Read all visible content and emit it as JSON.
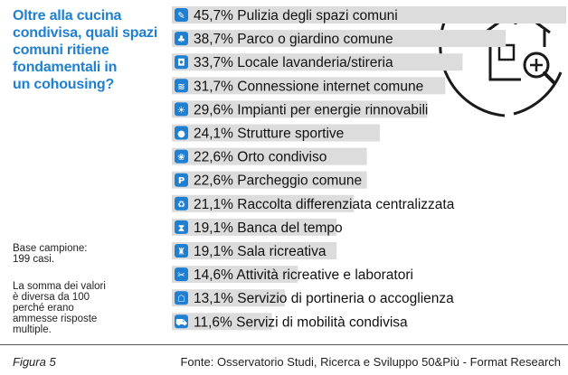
{
  "question": {
    "lines": [
      "Oltre alla cucina",
      "condivisa, quali spazi",
      "comuni ritiene",
      "fondamentali in",
      "un cohousing?"
    ]
  },
  "notes": {
    "base_title": "Base campione:",
    "base_value": "199 casi.",
    "sum_note_lines": [
      "La somma dei valori",
      "è diversa da 100",
      "perché erano",
      "ammesse risposte",
      "multiple."
    ]
  },
  "footer": {
    "figure": "Figura 5",
    "source": "Fonte: Osservatorio Studi, Ricerca e Sviluppo 50&Più - Format Research"
  },
  "colors": {
    "accent": "#1f7fd0",
    "bar": "#dcdcdc",
    "text": "#111111",
    "house_stroke": "#1a1a1a"
  },
  "chart_data": {
    "type": "bar",
    "orientation": "horizontal",
    "title": "Oltre alla cucina condivisa, quali spazi comuni ritiene fondamentali in un cohousing?",
    "unit": "%",
    "xlim": [
      0,
      45.7
    ],
    "categories": [
      "Pulizia degli spazi comuni",
      "Parco o giardino comune",
      "Locale lavanderia/stireria",
      "Connessione internet comune",
      "Impianti per energie rinnovabili",
      "Strutture sportive",
      "Orto condiviso",
      "Parcheggio comune",
      "Raccolta differenziata centralizzata",
      "Banca del tempo",
      "Sala ricreativa",
      "Attività ricreative e laboratori",
      "Servizio di portineria o accoglienza",
      "Servizi di mobilità condivisa"
    ],
    "values": [
      45.7,
      38.7,
      33.7,
      31.7,
      29.6,
      24.1,
      22.6,
      22.6,
      21.1,
      19.1,
      19.1,
      14.6,
      13.1,
      11.6
    ],
    "value_labels": [
      "45,7%",
      "38,7%",
      "33,7%",
      "31,7%",
      "29,6%",
      "24,1%",
      "22,6%",
      "22,6%",
      "21,1%",
      "19,1%",
      "19,1%",
      "14,6%",
      "13,1%",
      "11,6%"
    ],
    "icons": [
      "broom-icon",
      "tree-icon",
      "washing-machine-icon",
      "wifi-icon",
      "solar-plug-icon",
      "sports-ball-icon",
      "garden-icon",
      "parking-icon",
      "recycle-icon",
      "hourglass-icon",
      "game-room-icon",
      "crafts-icon",
      "concierge-icon",
      "shared-car-icon"
    ]
  }
}
